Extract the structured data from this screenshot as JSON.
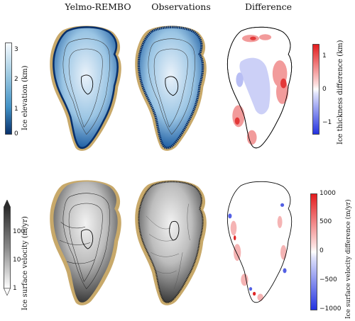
{
  "titles": {
    "col1": "Yelmo-REMBO",
    "col2": "Observations",
    "col3": "Difference"
  },
  "colorbars": {
    "elevation": {
      "label": "Ice elevation (km)",
      "ticks": [
        "3",
        "2",
        "1",
        "0"
      ],
      "colors": [
        "#f3f8fc",
        "#08306b"
      ]
    },
    "velocity": {
      "label": "Ice surface velocity (m/yr)",
      "ticks": [
        "100",
        "10",
        "1"
      ],
      "colors": [
        "#ffffff",
        "#3b3b3b"
      ]
    },
    "thickness_diff": {
      "label": "Ice thickness difference (km)",
      "ticks": [
        "1",
        "0",
        "−1"
      ],
      "colors": [
        "#d7191c",
        "#ffffff",
        "#2b3cd9"
      ]
    },
    "velocity_diff": {
      "label": "Ice surface velocity difference (m/yr)",
      "ticks": [
        "1000",
        "500",
        "0",
        "−500",
        "−1000"
      ],
      "colors": [
        "#d7191c",
        "#ffffff",
        "#2b3cd9"
      ]
    }
  },
  "colors": {
    "land": "#c8a96a",
    "coast": "#000000"
  }
}
